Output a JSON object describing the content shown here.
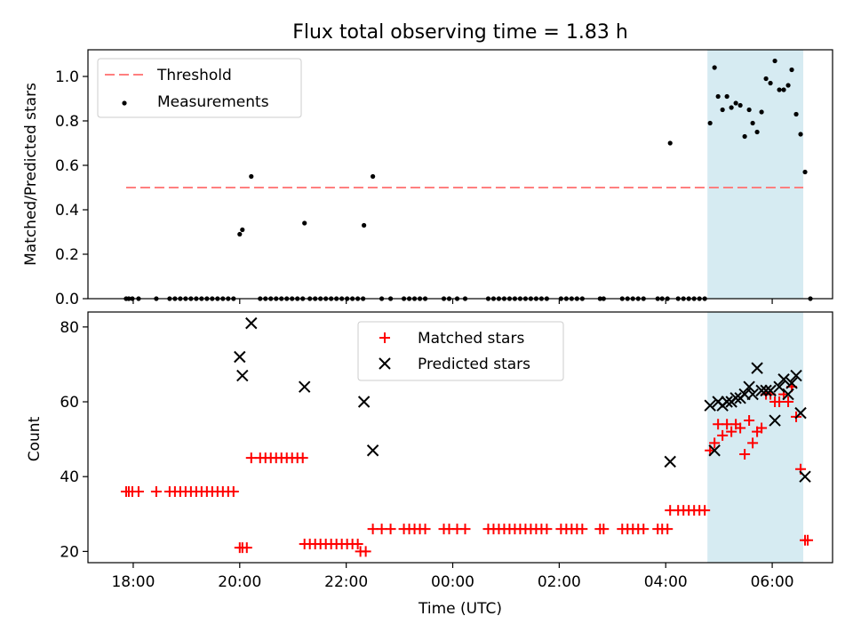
{
  "title": "Flux total observing time = 1.83 h",
  "colors": {
    "threshold": "#ff7f7f",
    "measurement": "#000000",
    "matched": "#ff0000",
    "predicted": "#000000",
    "highlight": "#add8e6"
  },
  "chart_data": [
    {
      "type": "scatter",
      "ylabel": "Matched/Predicted stars",
      "xlabel": "",
      "ylim": [
        0,
        1.12
      ],
      "yticks": [
        "0.0",
        "0.2",
        "0.4",
        "0.6",
        "0.8",
        "1.0"
      ],
      "legend_position": "upper-left",
      "legend": [
        "Threshold",
        "Measurements"
      ],
      "threshold": {
        "value": 0.5,
        "x_start": "17:52",
        "x_end": "06:35",
        "style": "dashed"
      },
      "highlight_span": {
        "x_start": "04:47",
        "x_end": "06:35"
      },
      "series": [
        {
          "name": "Measurements",
          "marker": "dot",
          "points": [
            [
              "17:52",
              0
            ],
            [
              "17:55",
              0
            ],
            [
              "17:59",
              0
            ],
            [
              "18:06",
              0
            ],
            [
              "18:26",
              0
            ],
            [
              "18:41",
              0
            ],
            [
              "18:47",
              0
            ],
            [
              "18:53",
              0
            ],
            [
              "18:59",
              0
            ],
            [
              "19:05",
              0
            ],
            [
              "19:11",
              0
            ],
            [
              "19:17",
              0
            ],
            [
              "19:23",
              0
            ],
            [
              "19:29",
              0
            ],
            [
              "19:35",
              0
            ],
            [
              "19:41",
              0
            ],
            [
              "19:47",
              0
            ],
            [
              "19:53",
              0
            ],
            [
              "20:00",
              0.29
            ],
            [
              "20:03",
              0.31
            ],
            [
              "20:13",
              0.55
            ],
            [
              "20:23",
              0
            ],
            [
              "20:29",
              0
            ],
            [
              "20:35",
              0
            ],
            [
              "20:41",
              0
            ],
            [
              "20:47",
              0
            ],
            [
              "20:53",
              0
            ],
            [
              "20:59",
              0
            ],
            [
              "21:05",
              0
            ],
            [
              "21:11",
              0
            ],
            [
              "21:13",
              0.34
            ],
            [
              "21:19",
              0
            ],
            [
              "21:25",
              0
            ],
            [
              "21:31",
              0
            ],
            [
              "21:37",
              0
            ],
            [
              "21:43",
              0
            ],
            [
              "21:49",
              0
            ],
            [
              "21:55",
              0
            ],
            [
              "22:01",
              0
            ],
            [
              "22:07",
              0
            ],
            [
              "22:13",
              0
            ],
            [
              "22:19",
              0
            ],
            [
              "22:20",
              0.33
            ],
            [
              "22:30",
              0.55
            ],
            [
              "22:40",
              0
            ],
            [
              "22:50",
              0
            ],
            [
              "23:05",
              0
            ],
            [
              "23:11",
              0
            ],
            [
              "23:17",
              0
            ],
            [
              "23:23",
              0
            ],
            [
              "23:29",
              0
            ],
            [
              "23:50",
              0
            ],
            [
              "23:56",
              0
            ],
            [
              "00:05",
              0
            ],
            [
              "00:14",
              0
            ],
            [
              "00:40",
              0
            ],
            [
              "00:46",
              0
            ],
            [
              "00:52",
              0
            ],
            [
              "00:58",
              0
            ],
            [
              "01:04",
              0
            ],
            [
              "01:10",
              0
            ],
            [
              "01:16",
              0
            ],
            [
              "01:22",
              0
            ],
            [
              "01:28",
              0
            ],
            [
              "01:34",
              0
            ],
            [
              "01:40",
              0
            ],
            [
              "01:46",
              0
            ],
            [
              "02:02",
              0
            ],
            [
              "02:08",
              0
            ],
            [
              "02:14",
              0
            ],
            [
              "02:20",
              0
            ],
            [
              "02:26",
              0
            ],
            [
              "02:46",
              0
            ],
            [
              "02:50",
              0
            ],
            [
              "03:11",
              0
            ],
            [
              "03:17",
              0
            ],
            [
              "03:23",
              0
            ],
            [
              "03:29",
              0
            ],
            [
              "03:35",
              0
            ],
            [
              "03:51",
              0
            ],
            [
              "03:56",
              0
            ],
            [
              "04:02",
              0
            ],
            [
              "04:05",
              0.7
            ],
            [
              "04:14",
              0
            ],
            [
              "04:20",
              0
            ],
            [
              "04:26",
              0
            ],
            [
              "04:32",
              0
            ],
            [
              "04:38",
              0
            ],
            [
              "04:44",
              0
            ],
            [
              "04:50",
              0.79
            ],
            [
              "04:55",
              1.04
            ],
            [
              "04:59",
              0.91
            ],
            [
              "05:04",
              0.85
            ],
            [
              "05:09",
              0.91
            ],
            [
              "05:14",
              0.86
            ],
            [
              "05:19",
              0.88
            ],
            [
              "05:24",
              0.87
            ],
            [
              "05:29",
              0.73
            ],
            [
              "05:34",
              0.85
            ],
            [
              "05:38",
              0.79
            ],
            [
              "05:43",
              0.75
            ],
            [
              "05:48",
              0.84
            ],
            [
              "05:53",
              0.99
            ],
            [
              "05:58",
              0.97
            ],
            [
              "06:03",
              1.07
            ],
            [
              "06:08",
              0.94
            ],
            [
              "06:13",
              0.94
            ],
            [
              "06:18",
              0.96
            ],
            [
              "06:22",
              1.03
            ],
            [
              "06:27",
              0.83
            ],
            [
              "06:32",
              0.74
            ],
            [
              "06:37",
              0.57
            ],
            [
              "06:43",
              0
            ]
          ]
        }
      ]
    },
    {
      "type": "scatter",
      "ylabel": "Count",
      "xlabel": "Time (UTC)",
      "ylim": [
        17,
        84
      ],
      "yticks": [
        "20",
        "40",
        "60",
        "80"
      ],
      "xticks": [
        "18:00",
        "20:00",
        "22:00",
        "00:00",
        "02:00",
        "04:00",
        "06:00"
      ],
      "legend_position": "upper-center",
      "legend": [
        "Matched stars",
        "Predicted stars"
      ],
      "highlight_span": {
        "x_start": "04:47",
        "x_end": "06:35"
      },
      "series": [
        {
          "name": "Matched stars",
          "marker": "plus",
          "points": [
            [
              "17:52",
              36
            ],
            [
              "17:55",
              36
            ],
            [
              "17:59",
              36
            ],
            [
              "18:06",
              36
            ],
            [
              "18:26",
              36
            ],
            [
              "18:41",
              36
            ],
            [
              "18:47",
              36
            ],
            [
              "18:53",
              36
            ],
            [
              "18:59",
              36
            ],
            [
              "19:05",
              36
            ],
            [
              "19:11",
              36
            ],
            [
              "19:17",
              36
            ],
            [
              "19:23",
              36
            ],
            [
              "19:29",
              36
            ],
            [
              "19:35",
              36
            ],
            [
              "19:41",
              36
            ],
            [
              "19:47",
              36
            ],
            [
              "19:53",
              36
            ],
            [
              "20:00",
              21
            ],
            [
              "20:03",
              21
            ],
            [
              "20:08",
              21
            ],
            [
              "20:13",
              45
            ],
            [
              "20:23",
              45
            ],
            [
              "20:29",
              45
            ],
            [
              "20:35",
              45
            ],
            [
              "20:41",
              45
            ],
            [
              "20:47",
              45
            ],
            [
              "20:53",
              45
            ],
            [
              "20:59",
              45
            ],
            [
              "21:05",
              45
            ],
            [
              "21:11",
              45
            ],
            [
              "21:13",
              22
            ],
            [
              "21:19",
              22
            ],
            [
              "21:25",
              22
            ],
            [
              "21:31",
              22
            ],
            [
              "21:37",
              22
            ],
            [
              "21:43",
              22
            ],
            [
              "21:49",
              22
            ],
            [
              "21:55",
              22
            ],
            [
              "22:01",
              22
            ],
            [
              "22:07",
              22
            ],
            [
              "22:13",
              22
            ],
            [
              "22:16",
              20
            ],
            [
              "22:22",
              20
            ],
            [
              "22:30",
              26
            ],
            [
              "22:40",
              26
            ],
            [
              "22:50",
              26
            ],
            [
              "23:05",
              26
            ],
            [
              "23:11",
              26
            ],
            [
              "23:17",
              26
            ],
            [
              "23:23",
              26
            ],
            [
              "23:29",
              26
            ],
            [
              "23:50",
              26
            ],
            [
              "23:56",
              26
            ],
            [
              "00:05",
              26
            ],
            [
              "00:14",
              26
            ],
            [
              "00:40",
              26
            ],
            [
              "00:46",
              26
            ],
            [
              "00:52",
              26
            ],
            [
              "00:58",
              26
            ],
            [
              "01:04",
              26
            ],
            [
              "01:10",
              26
            ],
            [
              "01:16",
              26
            ],
            [
              "01:22",
              26
            ],
            [
              "01:28",
              26
            ],
            [
              "01:34",
              26
            ],
            [
              "01:40",
              26
            ],
            [
              "01:46",
              26
            ],
            [
              "02:02",
              26
            ],
            [
              "02:08",
              26
            ],
            [
              "02:14",
              26
            ],
            [
              "02:20",
              26
            ],
            [
              "02:26",
              26
            ],
            [
              "02:46",
              26
            ],
            [
              "02:50",
              26
            ],
            [
              "03:11",
              26
            ],
            [
              "03:17",
              26
            ],
            [
              "03:23",
              26
            ],
            [
              "03:29",
              26
            ],
            [
              "03:35",
              26
            ],
            [
              "03:51",
              26
            ],
            [
              "03:56",
              26
            ],
            [
              "04:02",
              26
            ],
            [
              "04:05",
              31
            ],
            [
              "04:14",
              31
            ],
            [
              "04:20",
              31
            ],
            [
              "04:26",
              31
            ],
            [
              "04:32",
              31
            ],
            [
              "04:38",
              31
            ],
            [
              "04:44",
              31
            ],
            [
              "04:50",
              47
            ],
            [
              "04:55",
              49
            ],
            [
              "04:59",
              54
            ],
            [
              "05:04",
              51
            ],
            [
              "05:09",
              54
            ],
            [
              "05:14",
              52
            ],
            [
              "05:19",
              54
            ],
            [
              "05:24",
              53
            ],
            [
              "05:29",
              46
            ],
            [
              "05:34",
              55
            ],
            [
              "05:38",
              49
            ],
            [
              "05:43",
              52
            ],
            [
              "05:48",
              53
            ],
            [
              "05:53",
              62
            ],
            [
              "05:58",
              62
            ],
            [
              "06:03",
              60
            ],
            [
              "06:08",
              60
            ],
            [
              "06:13",
              62
            ],
            [
              "06:18",
              60
            ],
            [
              "06:22",
              64
            ],
            [
              "06:27",
              56
            ],
            [
              "06:32",
              42
            ],
            [
              "06:37",
              23
            ],
            [
              "06:40",
              23
            ]
          ]
        },
        {
          "name": "Predicted stars",
          "marker": "x",
          "points": [
            [
              "20:00",
              72
            ],
            [
              "20:03",
              67
            ],
            [
              "20:13",
              81
            ],
            [
              "21:13",
              64
            ],
            [
              "22:20",
              60
            ],
            [
              "22:30",
              47
            ],
            [
              "04:05",
              44
            ],
            [
              "04:50",
              59
            ],
            [
              "04:55",
              47
            ],
            [
              "04:59",
              60
            ],
            [
              "05:04",
              59
            ],
            [
              "05:09",
              60
            ],
            [
              "05:14",
              60
            ],
            [
              "05:19",
              61
            ],
            [
              "05:24",
              61
            ],
            [
              "05:29",
              62
            ],
            [
              "05:34",
              64
            ],
            [
              "05:38",
              62
            ],
            [
              "05:43",
              69
            ],
            [
              "05:48",
              63
            ],
            [
              "05:53",
              63
            ],
            [
              "05:58",
              63
            ],
            [
              "06:03",
              55
            ],
            [
              "06:08",
              64
            ],
            [
              "06:13",
              66
            ],
            [
              "06:18",
              62
            ],
            [
              "06:22",
              65
            ],
            [
              "06:27",
              67
            ],
            [
              "06:32",
              57
            ],
            [
              "06:37",
              40
            ]
          ]
        }
      ]
    }
  ]
}
